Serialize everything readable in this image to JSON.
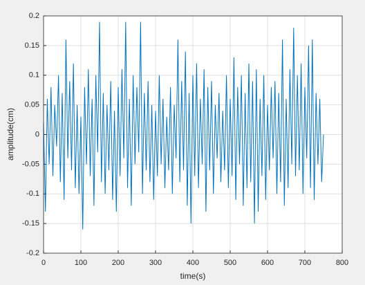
{
  "chart_data": {
    "type": "line",
    "xlabel": "time(s)",
    "ylabel": "amplitude(cm)",
    "xlim": [
      0,
      800
    ],
    "xticks": [
      0,
      100,
      200,
      300,
      400,
      500,
      600,
      700,
      800
    ],
    "ylim": [
      -0.2,
      0.2
    ],
    "yticks": [
      -0.2,
      -0.15,
      -0.1,
      -0.05,
      0,
      0.05,
      0.1,
      0.15,
      0.2
    ],
    "grid": true,
    "x": [
      0,
      5,
      10,
      15,
      20,
      25,
      30,
      35,
      40,
      45,
      50,
      55,
      60,
      65,
      70,
      75,
      80,
      85,
      90,
      95,
      100,
      105,
      110,
      115,
      120,
      125,
      130,
      135,
      140,
      145,
      150,
      155,
      160,
      165,
      170,
      175,
      180,
      185,
      190,
      195,
      200,
      205,
      210,
      215,
      220,
      225,
      230,
      235,
      240,
      245,
      250,
      255,
      260,
      265,
      270,
      275,
      280,
      285,
      290,
      295,
      300,
      305,
      310,
      315,
      320,
      325,
      330,
      335,
      340,
      345,
      350,
      355,
      360,
      365,
      370,
      375,
      380,
      385,
      390,
      395,
      400,
      405,
      410,
      415,
      420,
      425,
      430,
      435,
      440,
      445,
      450,
      455,
      460,
      465,
      470,
      475,
      480,
      485,
      490,
      495,
      500,
      505,
      510,
      515,
      520,
      525,
      530,
      535,
      540,
      545,
      550,
      555,
      560,
      565,
      570,
      575,
      580,
      585,
      590,
      595,
      600,
      605,
      610,
      615,
      620,
      625,
      630,
      635,
      640,
      645,
      650,
      655,
      660,
      665,
      670,
      675,
      680,
      685,
      690,
      695,
      700,
      705,
      710,
      715,
      720,
      725,
      730,
      735,
      740,
      745,
      750
    ],
    "series": [
      {
        "color": "#0072bd",
        "values": [
          0.02,
          -0.13,
          0.06,
          -0.05,
          0.08,
          -0.07,
          0.05,
          -0.02,
          0.1,
          -0.08,
          0.07,
          -0.11,
          0.16,
          -0.04,
          0.09,
          -0.06,
          0.12,
          -0.09,
          0.05,
          -0.1,
          0.03,
          -0.16,
          0.08,
          -0.05,
          0.11,
          -0.07,
          0.06,
          -0.12,
          0.1,
          -0.03,
          0.19,
          -0.08,
          0.07,
          -0.1,
          0.05,
          -0.06,
          0.09,
          -0.11,
          0.04,
          -0.13,
          0.08,
          -0.07,
          0.11,
          -0.04,
          0.19,
          -0.09,
          0.06,
          -0.12,
          0.1,
          -0.05,
          0.08,
          -0.03,
          0.19,
          -0.1,
          0.07,
          -0.06,
          0.09,
          -0.08,
          0.05,
          -0.11,
          0.04,
          -0.07,
          0.1,
          -0.05,
          0.06,
          -0.09,
          0.03,
          -0.06,
          0.08,
          -0.1,
          0.05,
          -0.04,
          0.16,
          -0.08,
          0.09,
          -0.06,
          0.14,
          -0.12,
          0.07,
          -0.15,
          0.1,
          -0.07,
          0.12,
          -0.09,
          0.06,
          -0.05,
          0.11,
          -0.13,
          0.08,
          -0.06,
          0.09,
          -0.1,
          0.05,
          -0.04,
          0.07,
          -0.08,
          0.04,
          -0.06,
          0.1,
          -0.09,
          0.06,
          -0.07,
          0.13,
          -0.11,
          0.08,
          -0.05,
          0.1,
          -0.12,
          0.07,
          -0.09,
          0.12,
          -0.08,
          0.09,
          -0.15,
          0.11,
          -0.13,
          0.06,
          -0.07,
          0.1,
          -0.11,
          0.05,
          -0.06,
          0.08,
          -0.04,
          0.09,
          -0.1,
          0.07,
          -0.08,
          0.16,
          -0.12,
          0.06,
          -0.09,
          0.11,
          -0.05,
          0.18,
          -0.07,
          0.1,
          -0.06,
          0.12,
          -0.1,
          0.08,
          -0.04,
          0.15,
          -0.09,
          0.16,
          -0.11,
          0.07,
          -0.05,
          0.06,
          -0.08,
          0.0
        ]
      }
    ]
  }
}
